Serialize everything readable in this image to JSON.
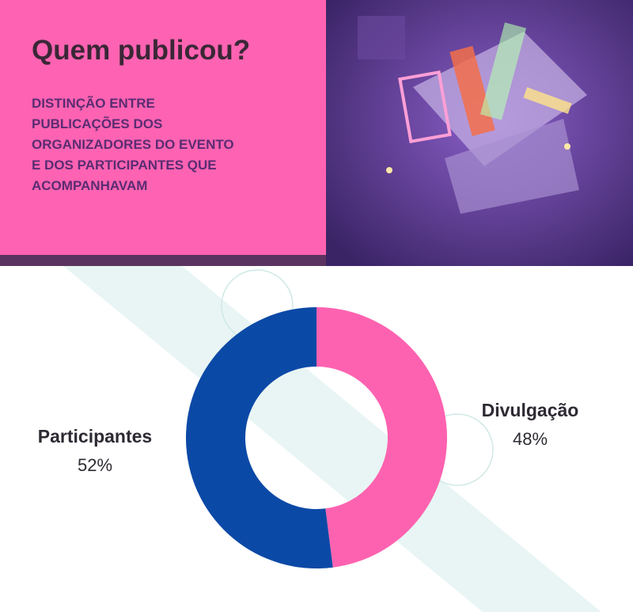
{
  "chart_data": {
    "type": "pie",
    "title": "Quem publicou?",
    "subtitle": [
      "DISTINÇÃO ENTRE",
      "PUBLICAÇÕES DOS",
      "ORGANIZADORES DO EVENTO",
      "E DOS PARTICIPANTES QUE",
      "ACOMPANHAVAM"
    ],
    "categories": [
      "Divulgação",
      "Participantes"
    ],
    "values": [
      48,
      52
    ],
    "value_labels": [
      "48%",
      "52%"
    ],
    "colors": [
      "#fd62b0",
      "#0b49a6"
    ],
    "donut": true
  }
}
